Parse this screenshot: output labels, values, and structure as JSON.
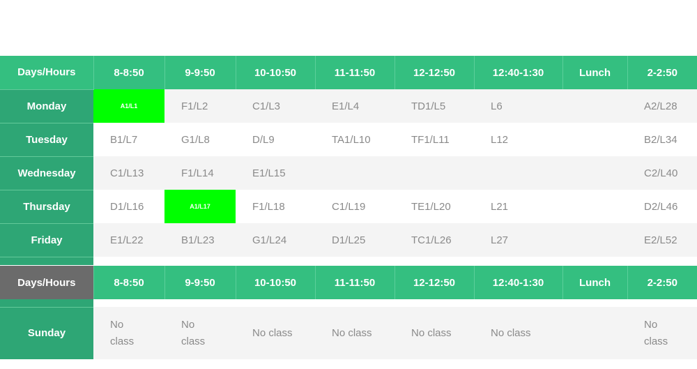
{
  "schedule": {
    "header": {
      "corner": "Days/Hours",
      "slots": [
        "8-8:50",
        "9-9:50",
        "10-10:50",
        "11-11:50",
        "12-12:50",
        "12:40-1:30",
        "Lunch",
        "2-2:50"
      ]
    },
    "rows": [
      {
        "day": "Monday",
        "cells": [
          "A1/L1",
          "F1/L2",
          "C1/L3",
          "E1/L4",
          "TD1/L5",
          "L6",
          "",
          "A2/L28"
        ]
      },
      {
        "day": "Tuesday",
        "cells": [
          "B1/L7",
          "G1/L8",
          "D/L9",
          "TA1/L10",
          "TF1/L11",
          "L12",
          "",
          "B2/L34"
        ]
      },
      {
        "day": "Wednesday",
        "cells": [
          "C1/L13",
          "F1/L14",
          "E1/L15",
          "",
          "",
          "",
          "",
          "C2/L40"
        ]
      },
      {
        "day": "Thursday",
        "cells": [
          "D1/L16",
          "A1/L17",
          "F1/L18",
          "C1/L19",
          "TE1/L20",
          "L21",
          "",
          "D2/L46"
        ]
      },
      {
        "day": "Friday",
        "cells": [
          "E1/L22",
          "B1/L23",
          "G1/L24",
          "D1/L25",
          "TC1/L26",
          "L27",
          "",
          "E2/L52"
        ]
      }
    ],
    "highlight_color": "#00ff00"
  },
  "weekend": {
    "header": {
      "corner": "Days/Hours",
      "slots": [
        "8-8:50",
        "9-9:50",
        "10-10:50",
        "11-11:50",
        "12-12:50",
        "12:40-1:30",
        "Lunch",
        "2-2:50"
      ]
    },
    "rows": [
      {
        "day": "Sunday",
        "cells": [
          "No class",
          "No class",
          "No class",
          "No class",
          "No class",
          "No class",
          "",
          "No class"
        ]
      }
    ]
  }
}
